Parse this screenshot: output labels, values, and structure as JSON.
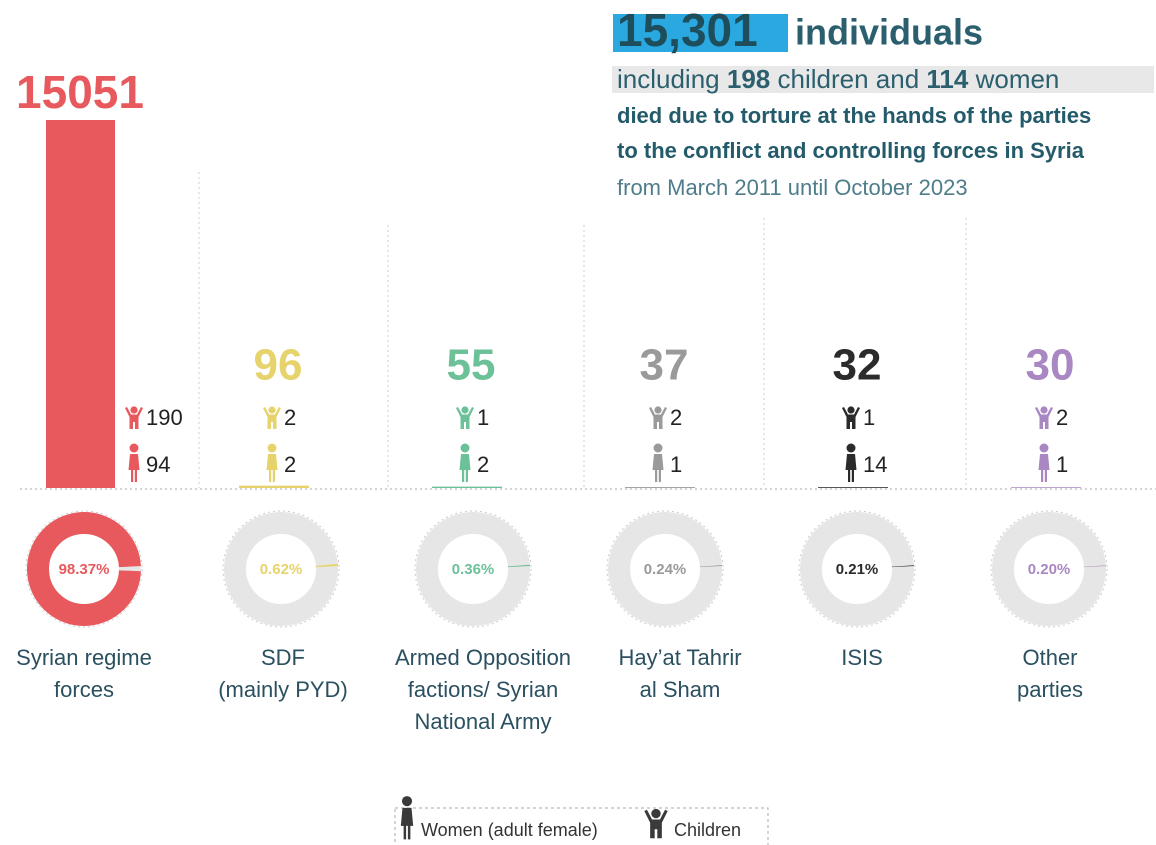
{
  "chart_data": {
    "type": "bar",
    "headline": {
      "total": "15,301",
      "total_suffix": "individuals",
      "line2": [
        "including",
        "198",
        "children and",
        "114",
        "women"
      ],
      "line3": "died due to torture at the hands of the parties",
      "line4": "to the conflict and controlling forces in Syria",
      "line5": "from March 2011 until October 2023"
    },
    "categories": [
      [
        "Syrian regime",
        "forces"
      ],
      [
        "SDF",
        "(mainly PYD)"
      ],
      [
        "Armed Opposition",
        "factions/ Syrian",
        "National Army"
      ],
      [
        "Hay’at Tahrir",
        "al Sham"
      ],
      [
        "ISIS"
      ],
      [
        "Other",
        "parties"
      ]
    ],
    "values": [
      15051,
      96,
      55,
      37,
      32,
      30
    ],
    "colors": [
      "#e8595e",
      "#e6d36b",
      "#6cc199",
      "#9a9a9a",
      "#2b2b2b",
      "#a887c2"
    ],
    "children": [
      190,
      2,
      1,
      2,
      1,
      2
    ],
    "women": [
      94,
      2,
      2,
      1,
      14,
      1
    ],
    "shares": [
      98.37,
      0.62,
      0.36,
      0.24,
      0.21,
      0.2
    ],
    "share_labels": [
      "98.37%",
      "0.62%",
      "0.36%",
      "0.24%",
      "0.21%",
      "0.20%"
    ],
    "legend": {
      "women": "Women (adult female)",
      "children": "Children"
    }
  }
}
